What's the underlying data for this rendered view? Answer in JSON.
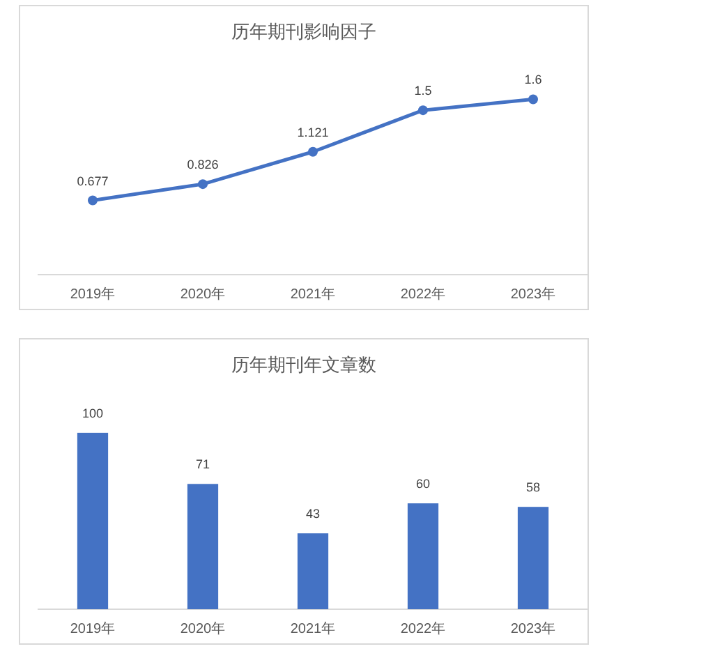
{
  "chart_data": [
    {
      "type": "line",
      "title": "历年期刊影响因子",
      "categories": [
        "2019年",
        "2020年",
        "2021年",
        "2022年",
        "2023年"
      ],
      "tick_labels": "x",
      "marker": "circle",
      "data_labels": true,
      "series": [
        {
          "color": "#4472c4",
          "values": [
            0.677,
            0.826,
            1.121,
            1.5,
            1.6
          ]
        }
      ]
    },
    {
      "type": "bar",
      "title": "历年期刊年文章数",
      "categories": [
        "2019年",
        "2020年",
        "2021年",
        "2022年",
        "2023年"
      ],
      "tick_labels": "x",
      "data_labels": true,
      "series": [
        {
          "color": "#4472c4",
          "values": [
            100,
            71,
            43,
            60,
            58
          ]
        }
      ]
    }
  ]
}
